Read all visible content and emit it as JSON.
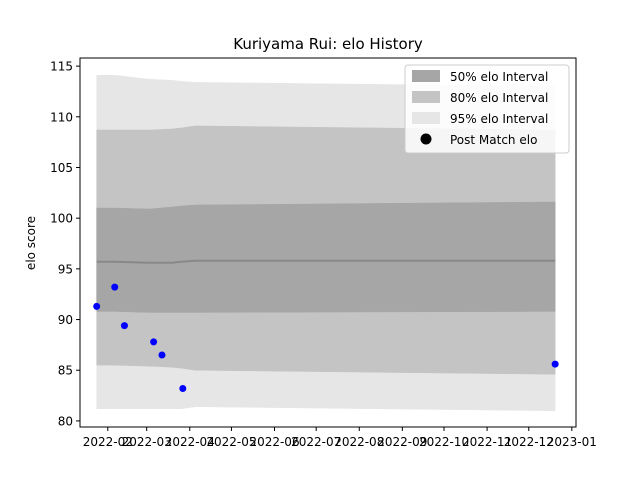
{
  "chart_data": {
    "type": "line",
    "title": "Kuriyama Rui: elo History",
    "xlabel": "",
    "ylabel": "elo score",
    "ylim": [
      79.4,
      115.8
    ],
    "yticks": [
      80,
      85,
      90,
      95,
      100,
      105,
      110,
      115
    ],
    "xlim": [
      "2022-01-12",
      "2023-01-04"
    ],
    "xticks": [
      "2022-02",
      "2022-03",
      "2022-04",
      "2022-05",
      "2022-06",
      "2022-07",
      "2022-08",
      "2022-09",
      "2022-10",
      "2022-11",
      "2022-12",
      "2023-01"
    ],
    "xtick_labels": [
      "2022-02",
      "2022-03",
      "2022-04",
      "2022-05",
      "2022-06",
      "2022-07",
      "2022-08",
      "2022-09",
      "2022-10",
      "2022-11",
      "2022-12",
      "2023-01"
    ],
    "band_dates": [
      "2022-01-24",
      "2022-02-06",
      "2022-03-03",
      "2022-03-19",
      "2022-03-26",
      "2022-04-05",
      "2022-12-20"
    ],
    "mean": [
      95.7,
      95.7,
      95.6,
      95.6,
      95.7,
      95.8,
      95.8
    ],
    "interval_50": {
      "lower": [
        90.8,
        90.8,
        90.7,
        90.7,
        90.7,
        90.7,
        90.8
      ],
      "upper": [
        101.0,
        101.0,
        100.9,
        101.1,
        101.2,
        101.3,
        101.6
      ]
    },
    "interval_80": {
      "lower": [
        85.5,
        85.5,
        85.4,
        85.3,
        85.2,
        85.0,
        84.6
      ],
      "upper": [
        108.7,
        108.7,
        108.7,
        108.8,
        108.9,
        109.1,
        108.7
      ]
    },
    "interval_95": {
      "lower": [
        81.2,
        81.2,
        81.2,
        81.2,
        81.2,
        81.4,
        81.0
      ],
      "upper": [
        114.1,
        114.1,
        113.7,
        113.6,
        113.5,
        113.4,
        113.0
      ]
    },
    "points": {
      "name": "Post Match elo",
      "x": [
        "2022-01-24",
        "2022-02-06",
        "2022-02-13",
        "2022-03-06",
        "2022-03-12",
        "2022-03-27",
        "2022-12-20"
      ],
      "y": [
        91.3,
        93.2,
        89.4,
        87.8,
        86.5,
        83.2,
        85.6
      ]
    },
    "legend": {
      "position": "top-right",
      "entries": [
        "50% elo Interval",
        "80% elo Interval",
        "95% elo Interval",
        "Post Match elo"
      ]
    },
    "colors": {
      "band50": "#a6a6a6",
      "band80": "#c4c4c4",
      "band95": "#e6e6e6",
      "mean_line": "#888888",
      "points": "#0000ff"
    }
  }
}
